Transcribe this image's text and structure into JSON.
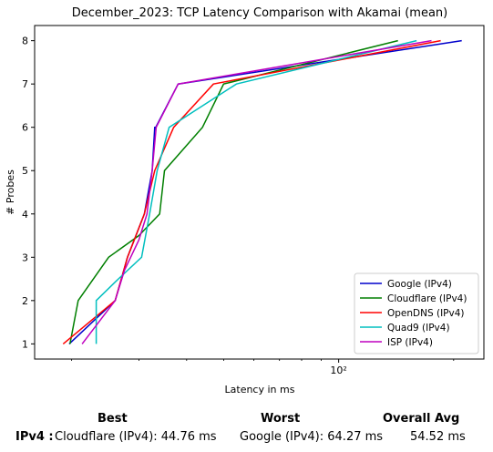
{
  "chart_data": {
    "type": "line",
    "title": "December_2023: TCP Latency Comparison with Akamai (mean)",
    "xlabel": "Latency in ms",
    "ylabel": "# Probes",
    "xscale": "log",
    "xlim": [
      16,
      240
    ],
    "ylim": [
      0.65,
      8.35
    ],
    "x_ticks": [
      {
        "value": 100,
        "label": "10²"
      }
    ],
    "y_ticks": [
      1,
      2,
      3,
      4,
      5,
      6,
      7,
      8
    ],
    "grid": false,
    "legend_position": "lower-right",
    "series": [
      {
        "name": "Google (IPv4)",
        "color": "#0000cc",
        "points": [
          [
            19.7,
            1
          ],
          [
            26,
            2
          ],
          [
            28,
            3
          ],
          [
            31,
            4
          ],
          [
            32.5,
            5
          ],
          [
            33,
            6
          ],
          [
            33.2,
            6
          ],
          [
            38,
            7
          ],
          [
            210,
            8
          ]
        ]
      },
      {
        "name": "Cloudflare (IPv4)",
        "color": "#007f00",
        "points": [
          [
            19.8,
            1
          ],
          [
            20.8,
            2
          ],
          [
            25,
            3
          ],
          [
            30,
            3.5
          ],
          [
            34,
            4
          ],
          [
            35,
            5
          ],
          [
            44,
            6
          ],
          [
            50,
            7
          ],
          [
            143,
            8
          ]
        ]
      },
      {
        "name": "OpenDNS (IPv4)",
        "color": "#ff0000",
        "points": [
          [
            19,
            1
          ],
          [
            26,
            2
          ],
          [
            28,
            3
          ],
          [
            31,
            4
          ],
          [
            33,
            5
          ],
          [
            37,
            6
          ],
          [
            47,
            7
          ],
          [
            185,
            8
          ]
        ]
      },
      {
        "name": "Quad9 (IPv4)",
        "color": "#00bfbf",
        "points": [
          [
            23.2,
            1
          ],
          [
            23.2,
            2
          ],
          [
            26.5,
            2.5
          ],
          [
            30.5,
            3
          ],
          [
            32,
            4
          ],
          [
            33.5,
            5
          ],
          [
            36,
            6
          ],
          [
            54,
            7
          ],
          [
            160,
            8
          ]
        ]
      },
      {
        "name": "ISP (IPv4)",
        "color": "#bf00bf",
        "points": [
          [
            21.3,
            1
          ],
          [
            26,
            2
          ],
          [
            27.5,
            2.7
          ],
          [
            30,
            3.4
          ],
          [
            31.5,
            4
          ],
          [
            32.5,
            5
          ],
          [
            33.3,
            6
          ],
          [
            38,
            7
          ],
          [
            175,
            8
          ]
        ]
      }
    ]
  },
  "summary": {
    "best_header": "Best",
    "worst_header": "Worst",
    "avg_header": "Overall Avg",
    "row_label": "IPv4 :",
    "best_value": "Cloudflare (IPv4): 44.76 ms",
    "worst_value": "Google (IPv4): 64.27 ms",
    "avg_value": "54.52 ms"
  }
}
